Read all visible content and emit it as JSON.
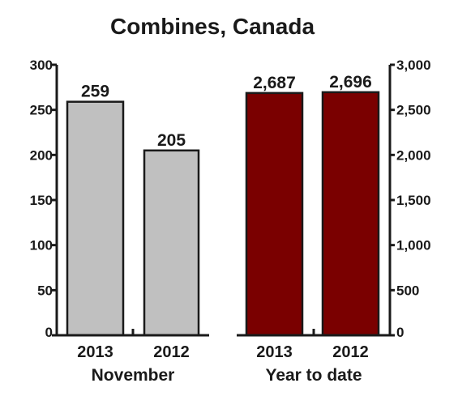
{
  "chart_data": {
    "type": "bar",
    "title": "Combines, Canada",
    "panels": [
      {
        "group_label": "November",
        "categories": [
          "2013",
          "2012"
        ],
        "values": [
          259,
          205
        ],
        "value_labels": [
          "259",
          "205"
        ],
        "ylim": [
          0,
          300
        ],
        "yticks": [
          0,
          50,
          100,
          150,
          200,
          250,
          300
        ],
        "ytick_labels": [
          "0",
          "50",
          "100",
          "150",
          "200",
          "250",
          "300"
        ],
        "axis_side": "left",
        "bar_color": "#c0c0c0"
      },
      {
        "group_label": "Year to date",
        "categories": [
          "2013",
          "2012"
        ],
        "values": [
          2687,
          2696
        ],
        "value_labels": [
          "2,687",
          "2,696"
        ],
        "ylim": [
          0,
          3000
        ],
        "yticks": [
          0,
          500,
          1000,
          1500,
          2000,
          2500,
          3000
        ],
        "ytick_labels": [
          "0",
          "500",
          "1,000",
          "1,500",
          "2,000",
          "2,500",
          "3,000"
        ],
        "axis_side": "right",
        "bar_color": "#7a0000"
      }
    ],
    "grid": false,
    "legend": "none"
  }
}
